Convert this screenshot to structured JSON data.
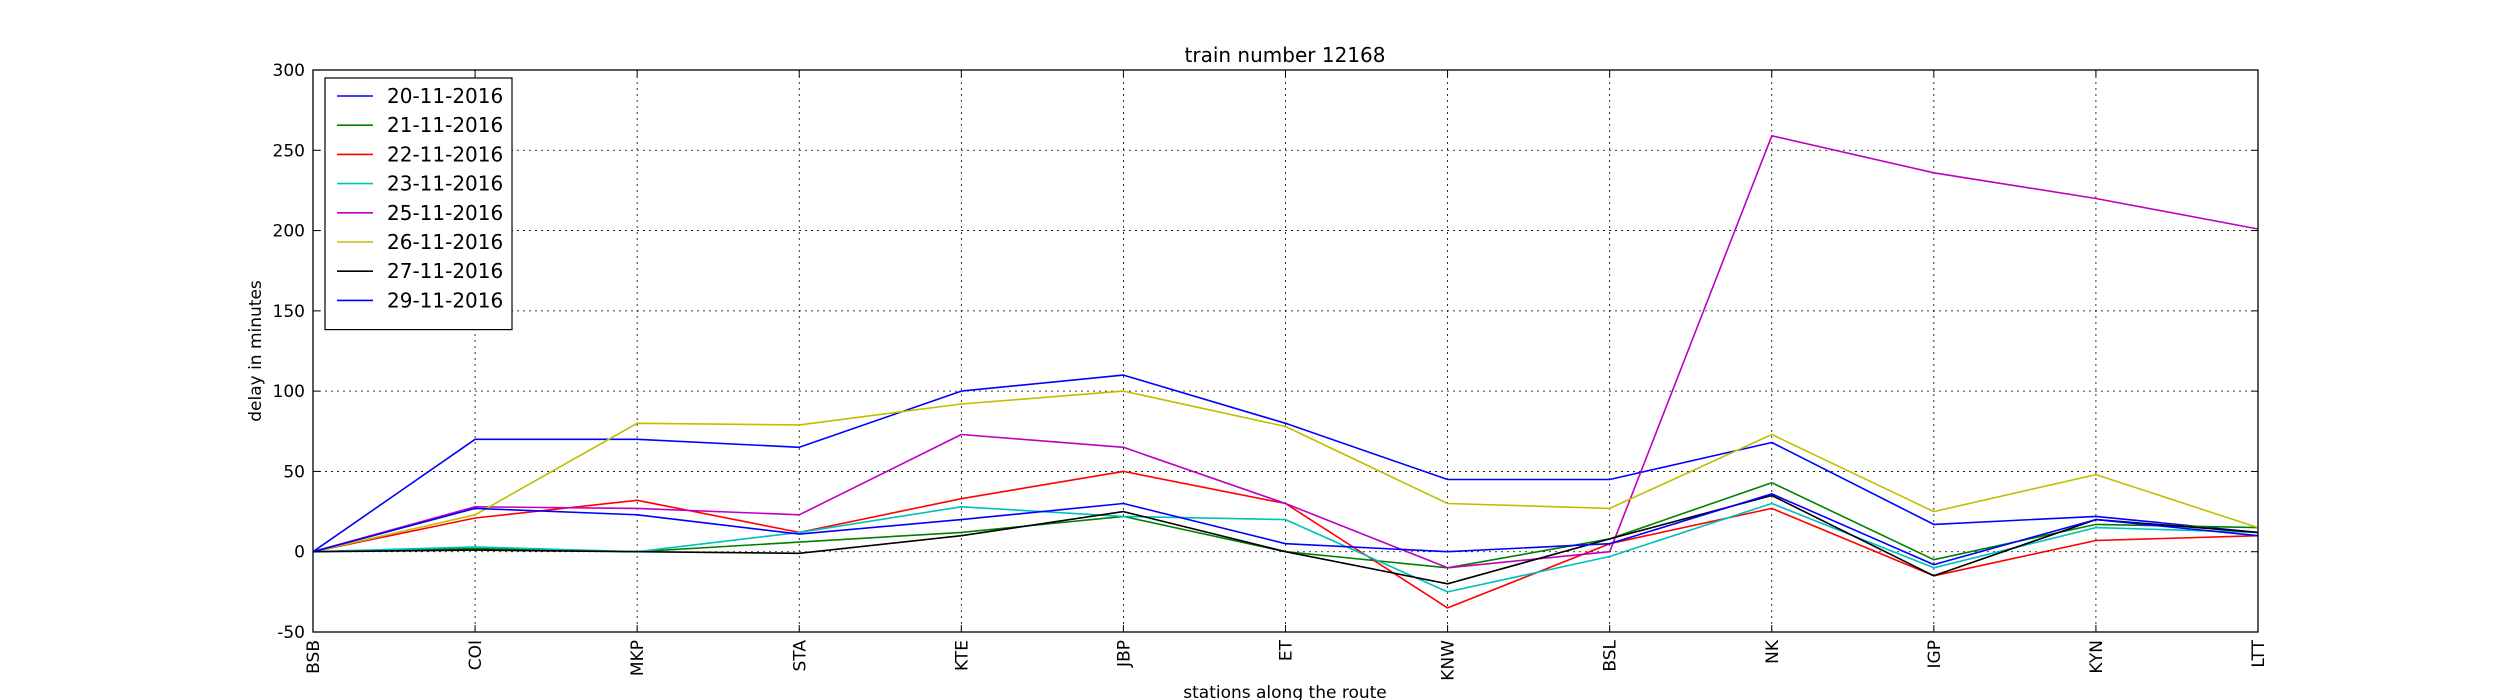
{
  "chart_data": {
    "type": "line",
    "title": "train number 12168",
    "xlabel": "stations along the route",
    "ylabel": "delay in minutes",
    "categories": [
      "BSB",
      "COI",
      "MKP",
      "STA",
      "KTE",
      "JBP",
      "ET",
      "KNW",
      "BSL",
      "NK",
      "IGP",
      "KYN",
      "LTT"
    ],
    "ylim": [
      -50,
      300
    ],
    "yticks": [
      -50,
      0,
      50,
      100,
      150,
      200,
      250,
      300
    ],
    "grid": true,
    "legend_position": "top-left",
    "series": [
      {
        "name": "20-11-2016",
        "color": "#0000ff",
        "values": [
          0,
          70,
          70,
          65,
          100,
          110,
          80,
          45,
          45,
          68,
          17,
          22,
          12
        ]
      },
      {
        "name": "21-11-2016",
        "color": "#008000",
        "values": [
          0,
          2,
          0,
          6,
          12,
          22,
          0,
          -10,
          8,
          43,
          -5,
          17,
          15
        ]
      },
      {
        "name": "22-11-2016",
        "color": "#ff0000",
        "values": [
          0,
          21,
          32,
          12,
          33,
          50,
          30,
          -35,
          5,
          27,
          -15,
          7,
          10
        ]
      },
      {
        "name": "23-11-2016",
        "color": "#00bfbf",
        "values": [
          0,
          3,
          0,
          12,
          28,
          22,
          20,
          -25,
          -3,
          30,
          -10,
          15,
          12
        ]
      },
      {
        "name": "25-11-2016",
        "color": "#bf00bf",
        "values": [
          0,
          28,
          27,
          23,
          73,
          65,
          30,
          -10,
          0,
          259,
          236,
          220,
          201
        ]
      },
      {
        "name": "26-11-2016",
        "color": "#bfbf00",
        "values": [
          0,
          23,
          80,
          79,
          92,
          100,
          78,
          30,
          27,
          73,
          25,
          48,
          15
        ]
      },
      {
        "name": "27-11-2016",
        "color": "#000000",
        "values": [
          0,
          1,
          0,
          -1,
          10,
          25,
          0,
          -20,
          8,
          35,
          -15,
          20,
          12
        ]
      },
      {
        "name": "29-11-2016",
        "color": "#0000ff",
        "values": [
          0,
          27,
          23,
          11,
          20,
          30,
          5,
          0,
          5,
          36,
          -8,
          20,
          10
        ]
      }
    ]
  }
}
